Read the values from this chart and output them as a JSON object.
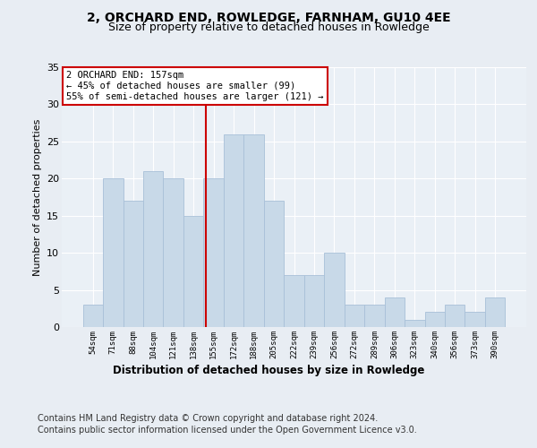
{
  "title": "2, ORCHARD END, ROWLEDGE, FARNHAM, GU10 4EE",
  "subtitle": "Size of property relative to detached houses in Rowledge",
  "xlabel": "Distribution of detached houses by size in Rowledge",
  "ylabel": "Number of detached properties",
  "categories": [
    "54sqm",
    "71sqm",
    "88sqm",
    "104sqm",
    "121sqm",
    "138sqm",
    "155sqm",
    "172sqm",
    "188sqm",
    "205sqm",
    "222sqm",
    "239sqm",
    "256sqm",
    "272sqm",
    "289sqm",
    "306sqm",
    "323sqm",
    "340sqm",
    "356sqm",
    "373sqm",
    "390sqm"
  ],
  "values": [
    3,
    20,
    17,
    21,
    20,
    15,
    20,
    26,
    26,
    17,
    7,
    7,
    10,
    3,
    3,
    4,
    1,
    2,
    3,
    2,
    4
  ],
  "bar_color": "#c8d9e8",
  "bar_edgecolor": "#a8c0d8",
  "annotation_title": "2 ORCHARD END: 157sqm",
  "annotation_line1": "← 45% of detached houses are smaller (99)",
  "annotation_line2": "55% of semi-detached houses are larger (121) →",
  "annotation_box_color": "#ffffff",
  "annotation_box_edgecolor": "#cc0000",
  "vline_color": "#cc0000",
  "ylim": [
    0,
    35
  ],
  "yticks": [
    0,
    5,
    10,
    15,
    20,
    25,
    30,
    35
  ],
  "bg_color": "#e8edf3",
  "plot_bg_color": "#eaf0f6",
  "footer1": "Contains HM Land Registry data © Crown copyright and database right 2024.",
  "footer2": "Contains public sector information licensed under the Open Government Licence v3.0.",
  "title_fontsize": 10,
  "subtitle_fontsize": 9,
  "footer_fontsize": 7
}
